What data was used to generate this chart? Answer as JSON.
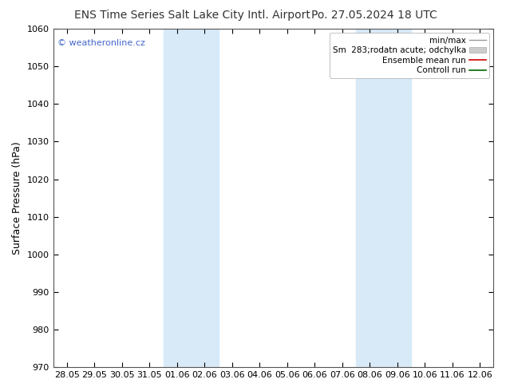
{
  "title_left": "ENS Time Series Salt Lake City Intl. Airport",
  "title_right": "Po. 27.05.2024 18 UTC",
  "ylabel": "Surface Pressure (hPa)",
  "ylim": [
    970,
    1060
  ],
  "yticks": [
    970,
    980,
    990,
    1000,
    1010,
    1020,
    1030,
    1040,
    1050,
    1060
  ],
  "xtick_labels": [
    "28.05",
    "29.05",
    "30.05",
    "31.05",
    "01.06",
    "02.06",
    "03.06",
    "04.06",
    "05.06",
    "06.06",
    "07.06",
    "08.06",
    "09.06",
    "10.06",
    "11.06",
    "12.06"
  ],
  "background_color": "#ffffff",
  "plot_bg_color": "#ffffff",
  "shaded_bands": [
    {
      "xmin": 4,
      "xmax": 6,
      "color": "#d8eaf8"
    },
    {
      "xmin": 11,
      "xmax": 13,
      "color": "#d8eaf8"
    }
  ],
  "watermark": "© weatheronline.cz",
  "watermark_color": "#4466cc",
  "title_color": "#333333",
  "title_fontsize": 10,
  "axis_label_fontsize": 9,
  "tick_fontsize": 8,
  "legend_fontsize": 7.5
}
